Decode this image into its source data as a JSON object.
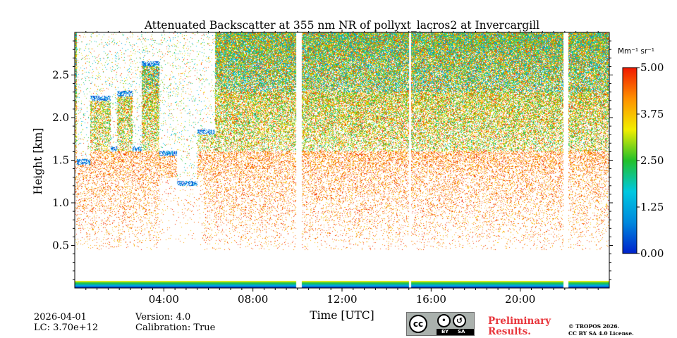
{
  "chart_data": {
    "type": "heatmap",
    "title": "Attenuated Backscatter at 355 nm NR of pollyxt_lacros2 at Invercargill",
    "xlabel": "Time [UTC]",
    "ylabel": "Height [km]",
    "x_ticks": [
      "04:00",
      "08:00",
      "12:00",
      "16:00",
      "20:00"
    ],
    "x_tick_hours": [
      4,
      8,
      12,
      16,
      20
    ],
    "xlim_hours": [
      0,
      24
    ],
    "y_ticks": [
      "0.5",
      "1.0",
      "1.5",
      "2.0",
      "2.5"
    ],
    "y_tick_values": [
      0.5,
      1.0,
      1.5,
      2.0,
      2.5
    ],
    "ylim_km": [
      0,
      3.0
    ],
    "colorbar": {
      "unit": "Mm⁻¹ sr⁻¹",
      "ticks": [
        "0.00",
        "1.25",
        "2.50",
        "3.75",
        "5.00"
      ],
      "tick_values": [
        0.0,
        1.25,
        2.5,
        3.75,
        5.0
      ],
      "range": [
        0.0,
        5.0
      ],
      "colormap": [
        "#0022cc",
        "#0088dd",
        "#00c8e0",
        "#22c02a",
        "#f2ee00",
        "#ff9000",
        "#f01800"
      ]
    },
    "data_gaps_hours": [
      [
        9.95,
        10.2
      ],
      [
        15.0,
        15.1
      ],
      [
        21.95,
        22.15
      ]
    ],
    "cloud_segments": [
      {
        "start_hour": 0.1,
        "end_hour": 0.7,
        "base_km": 1.45
      },
      {
        "start_hour": 0.7,
        "end_hour": 1.6,
        "base_km": 2.2
      },
      {
        "start_hour": 1.6,
        "end_hour": 1.9,
        "base_km": 1.6
      },
      {
        "start_hour": 1.9,
        "end_hour": 2.6,
        "base_km": 2.25
      },
      {
        "start_hour": 2.6,
        "end_hour": 3.0,
        "base_km": 1.6
      },
      {
        "start_hour": 3.0,
        "end_hour": 3.8,
        "base_km": 2.6
      },
      {
        "start_hour": 3.8,
        "end_hour": 4.6,
        "base_km": 1.55
      },
      {
        "start_hour": 4.6,
        "end_hour": 5.5,
        "base_km": 1.2
      },
      {
        "start_hour": 5.5,
        "end_hour": 6.3,
        "base_km": 1.8
      }
    ]
  },
  "footer": {
    "date": "2026-04-01",
    "lc": "LC: 3.70e+12",
    "version": "Version: 4.0",
    "calibration": "Calibration: True",
    "preliminary_line1": "Preliminary",
    "preliminary_line2": "Results.",
    "license_line1": "© TROPOS 2026.",
    "license_line2": "CC BY SA 4.0 License.",
    "cc_by": "BY",
    "cc_sa": "SA",
    "cc_text": "cc"
  }
}
